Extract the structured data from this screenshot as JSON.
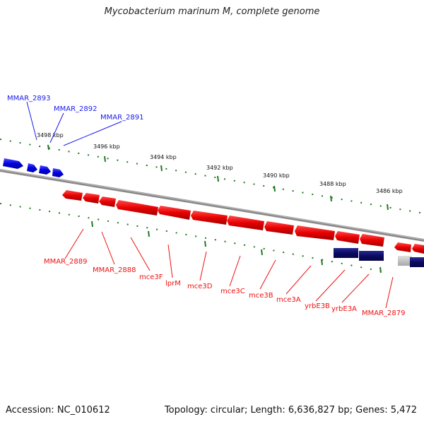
{
  "header": {
    "title": "Mycobacterium marinum M, complete genome"
  },
  "footer": {
    "accession": "Accession: NC_010612",
    "summary": "Topology: circular; Length: 6,636,827 bp; Genes: 5,472"
  },
  "scale": {
    "ticks": [
      "3498 kbp",
      "3496 kbp",
      "3494 kbp",
      "3492 kbp",
      "3490 kbp",
      "3488 kbp",
      "3486 kbp"
    ]
  },
  "genes": {
    "forward_labels": [
      "MMAR_2893",
      "MMAR_2892",
      "MMAR_2891"
    ],
    "reverse_labels": [
      "MMAR_2889",
      "MMAR_2888",
      "mce3F",
      "lprM",
      "mce3D",
      "mce3C",
      "mce3B",
      "mce3A",
      "yrbE3B",
      "yrbE3A",
      "MMAR_2879"
    ]
  },
  "colors": {
    "forward_gene": "#1a1aee",
    "reverse_gene": "#ee1111",
    "other_feature": "#1a1a80",
    "backbone": "#888888",
    "tick": "#1e7a1e"
  }
}
